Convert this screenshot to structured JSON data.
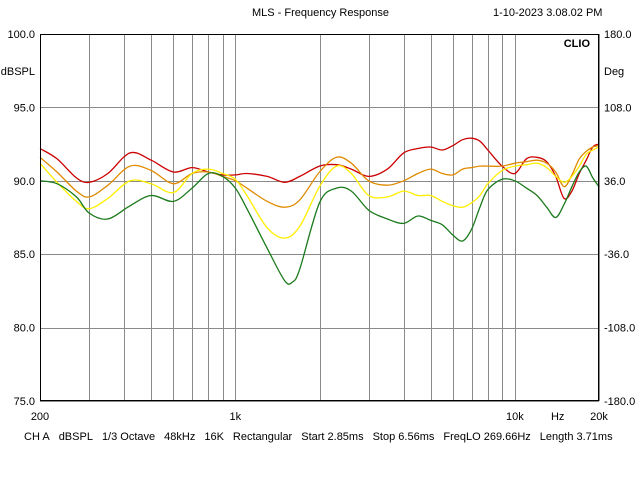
{
  "header": {
    "title": "MLS - Frequency Response",
    "timestamp": "1-10-2023 3.08.02 PM"
  },
  "chart_data": {
    "type": "line",
    "title": "MLS - Frequency Response",
    "brand": "CLIO",
    "xscale": "log",
    "xlim": [
      200,
      20000
    ],
    "ylim": [
      75,
      100
    ],
    "y2lim": [
      -180,
      180
    ],
    "ylabel": "dBSPL",
    "y2label": "Deg",
    "xunit": "Hz",
    "x_tick_labels": [
      {
        "f": 200,
        "label": "200"
      },
      {
        "f": 1000,
        "label": "1k"
      },
      {
        "f": 10000,
        "label": "10k"
      },
      {
        "f": 20000,
        "label": "20k"
      }
    ],
    "x_grid": [
      200,
      300,
      400,
      500,
      600,
      700,
      800,
      900,
      1000,
      2000,
      3000,
      4000,
      5000,
      6000,
      7000,
      8000,
      9000,
      10000,
      20000
    ],
    "y_ticks": [
      {
        "v": 100,
        "label": "100.0"
      },
      {
        "v": 95,
        "label": "95.0"
      },
      {
        "v": 90,
        "label": "90.0"
      },
      {
        "v": 85,
        "label": "85.0"
      },
      {
        "v": 80,
        "label": "80.0"
      },
      {
        "v": 75,
        "label": "75.0"
      }
    ],
    "y2_ticks": [
      {
        "v": 180,
        "label": "180.0"
      },
      {
        "v": 108,
        "label": "108.0"
      },
      {
        "v": 36,
        "label": "36.0"
      },
      {
        "v": -36,
        "label": "-36.0"
      },
      {
        "v": -108,
        "label": "-108.0"
      },
      {
        "v": -180,
        "label": "-180.0"
      }
    ],
    "series": [
      {
        "name": "trace-red",
        "color": "#cc0000",
        "x": [
          200,
          230,
          270,
          300,
          350,
          420,
          500,
          600,
          700,
          800,
          900,
          1000,
          1100,
          1300,
          1500,
          1700,
          2000,
          2300,
          2600,
          3000,
          3500,
          4000,
          4500,
          5000,
          5500,
          6000,
          6500,
          7000,
          7500,
          8000,
          9000,
          10000,
          11000,
          12000,
          13000,
          14000,
          15000,
          16000,
          17000,
          18000,
          19000,
          20000
        ],
        "values": [
          92.2,
          91.5,
          90.2,
          89.9,
          90.5,
          91.9,
          91.4,
          90.6,
          90.9,
          90.6,
          90.4,
          90.4,
          90.5,
          90.3,
          89.9,
          90.3,
          91.0,
          91.1,
          90.8,
          90.3,
          90.8,
          91.9,
          92.2,
          92.3,
          92.1,
          92.4,
          92.8,
          92.9,
          92.7,
          92.1,
          91.0,
          90.5,
          91.5,
          91.6,
          91.3,
          90.3,
          88.8,
          89.3,
          90.5,
          91.4,
          92.3,
          92.5
        ]
      },
      {
        "name": "trace-orange",
        "color": "#e08a00",
        "x": [
          200,
          230,
          270,
          300,
          350,
          420,
          500,
          600,
          700,
          800,
          900,
          1000,
          1100,
          1300,
          1500,
          1700,
          2000,
          2300,
          2600,
          3000,
          3500,
          4000,
          4500,
          5000,
          5500,
          6000,
          6500,
          7000,
          7500,
          8000,
          9000,
          10000,
          11000,
          12000,
          13000,
          14000,
          15000,
          16000,
          17000,
          18000,
          19000,
          20000
        ],
        "values": [
          91.6,
          90.6,
          89.3,
          88.9,
          89.7,
          91.0,
          90.7,
          89.8,
          90.5,
          90.6,
          90.3,
          90.0,
          89.5,
          88.6,
          88.2,
          88.7,
          90.6,
          91.6,
          91.2,
          90.0,
          89.7,
          90.0,
          90.5,
          90.8,
          90.5,
          90.4,
          90.8,
          90.9,
          91.0,
          91.0,
          91.0,
          91.2,
          91.3,
          91.4,
          91.2,
          90.6,
          89.6,
          90.4,
          91.5,
          92.0,
          92.3,
          92.4
        ]
      },
      {
        "name": "trace-yellow",
        "color": "#ffee00",
        "x": [
          200,
          230,
          270,
          300,
          350,
          420,
          500,
          600,
          700,
          800,
          900,
          1000,
          1100,
          1300,
          1500,
          1700,
          2000,
          2300,
          2600,
          3000,
          3500,
          4000,
          4500,
          5000,
          5500,
          6000,
          6500,
          7000,
          7500,
          8000,
          9000,
          10000,
          11000,
          12000,
          13000,
          14000,
          15000,
          16000,
          17000,
          18000,
          19000,
          20000
        ],
        "values": [
          91.2,
          89.9,
          88.6,
          88.1,
          88.8,
          90.0,
          89.8,
          89.2,
          90.5,
          90.8,
          90.5,
          90.1,
          89.0,
          86.8,
          86.1,
          86.9,
          89.6,
          91.0,
          90.5,
          89.0,
          88.9,
          89.3,
          89.0,
          89.0,
          88.6,
          88.3,
          88.2,
          88.5,
          89.0,
          89.8,
          90.7,
          91.0,
          91.1,
          91.2,
          90.9,
          90.3,
          89.9,
          90.3,
          91.0,
          91.8,
          92.1,
          92.3
        ]
      },
      {
        "name": "trace-green",
        "color": "#1b7a1b",
        "x": [
          200,
          230,
          270,
          300,
          350,
          420,
          500,
          600,
          700,
          800,
          900,
          1000,
          1100,
          1300,
          1500,
          1600,
          1700,
          2000,
          2300,
          2600,
          3000,
          3500,
          4000,
          4500,
          5000,
          5500,
          6000,
          6500,
          7000,
          7500,
          8000,
          9000,
          10000,
          11000,
          12000,
          13000,
          14000,
          15000,
          16000,
          17000,
          18000,
          19000,
          20000
        ],
        "values": [
          90.0,
          89.8,
          88.9,
          87.8,
          87.4,
          88.3,
          89.0,
          88.6,
          89.5,
          90.5,
          90.3,
          89.5,
          88.1,
          85.4,
          83.2,
          83.1,
          84.0,
          88.5,
          89.5,
          89.3,
          88.0,
          87.4,
          87.1,
          87.6,
          87.3,
          87.0,
          86.3,
          85.9,
          86.7,
          88.2,
          89.4,
          90.1,
          90.0,
          89.5,
          89.0,
          88.2,
          87.5,
          88.4,
          89.6,
          90.6,
          91.0,
          90.2,
          89.6
        ]
      }
    ]
  },
  "footer": {
    "items": [
      "CH A",
      "dBSPL",
      "1/3 Octave",
      "48kHz",
      "16K",
      "Rectangular",
      "Start 2.85ms",
      "Stop 6.56ms",
      "FreqLO 269.66Hz",
      "Length 3.71ms"
    ]
  }
}
